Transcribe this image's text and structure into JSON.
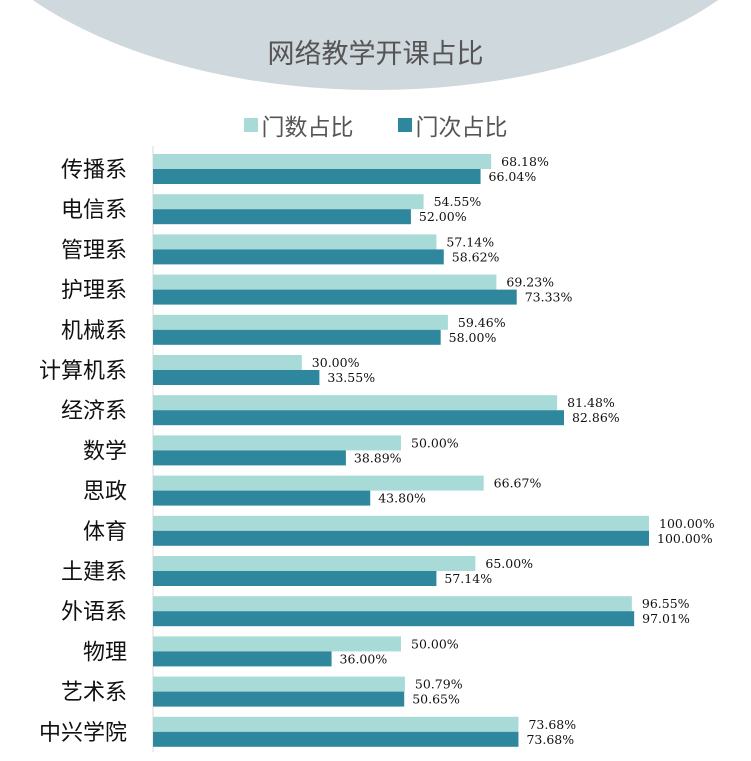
{
  "chart_data": {
    "type": "bar",
    "orientation": "horizontal",
    "title": "网络教学开课占比",
    "categories": [
      "传播系",
      "电信系",
      "管理系",
      "护理系",
      "机械系",
      "计算机系",
      "经济系",
      "数学",
      "思政",
      "体育",
      "土建系",
      "外语系",
      "物理",
      "艺术系",
      "中兴学院"
    ],
    "series": [
      {
        "name": "门数占比",
        "color": "#a8dbd7",
        "values": [
          68.18,
          54.55,
          57.14,
          69.23,
          59.46,
          30.0,
          81.48,
          50.0,
          66.67,
          100.0,
          65.0,
          96.55,
          50.0,
          50.79,
          73.68
        ]
      },
      {
        "name": "门次占比",
        "color": "#2e879d",
        "values": [
          66.04,
          52.0,
          58.62,
          73.33,
          58.0,
          33.55,
          82.86,
          38.89,
          43.8,
          100.0,
          57.14,
          97.01,
          36.0,
          50.65,
          73.68
        ]
      }
    ],
    "xlim": [
      0,
      100
    ],
    "legend": "top",
    "value_format": "percent-2dp"
  }
}
